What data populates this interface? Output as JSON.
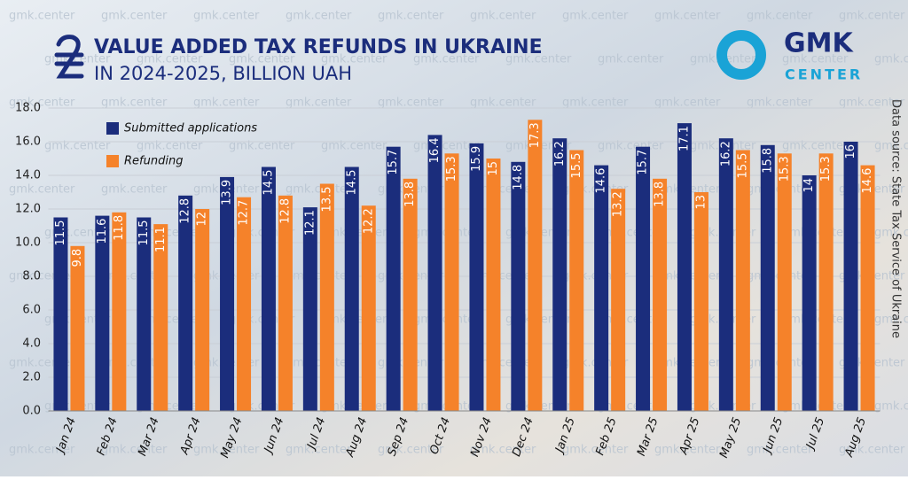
{
  "chart_data": {
    "type": "bar",
    "title": "VALUE ADDED TAX REFUNDS IN UKRAINE",
    "subtitle": "IN 2024-2025, BILLION UAH",
    "source": "Data source: State Tax Service of Ukraine",
    "categories": [
      "Jan 24",
      "Feb 24",
      "Mar 24",
      "Apr 24",
      "May 24",
      "Jun 24",
      "Jul 24",
      "Aug 24",
      "Sep 24",
      "Oct 24",
      "Nov 24",
      "Dec 24",
      "Jan 25",
      "Feb 25",
      "Mar 25",
      "Apr 25",
      "May 25",
      "Jun 25",
      "Jul 25",
      "Aug 25"
    ],
    "series": [
      {
        "name": "Submitted applications",
        "color": "#1b2d7c",
        "values": [
          11.5,
          11.6,
          11.5,
          12.8,
          13.9,
          14.5,
          12.1,
          14.5,
          15.7,
          16.4,
          15.9,
          14.8,
          16.2,
          14.6,
          15.7,
          17.1,
          16.2,
          15.8,
          14,
          16
        ]
      },
      {
        "name": "Refunding",
        "color": "#f5822a",
        "values": [
          9.8,
          11.8,
          11.1,
          12,
          12.7,
          12.8,
          13.5,
          12.2,
          13.8,
          15.3,
          15,
          17.3,
          15.5,
          13.2,
          13.8,
          13,
          15.5,
          15.3,
          15.3,
          14.6
        ]
      }
    ],
    "ylim": [
      0,
      18
    ],
    "yticks": [
      {
        "value": 0,
        "label": "0.0"
      },
      {
        "value": 2,
        "label": "2.0"
      },
      {
        "value": 4,
        "label": "4.0"
      },
      {
        "value": 6,
        "label": "6.0"
      },
      {
        "value": 8,
        "label": "8.0"
      },
      {
        "value": 10,
        "label": "10.0"
      },
      {
        "value": 12,
        "label": "12.0"
      },
      {
        "value": 14,
        "label": "14.0"
      },
      {
        "value": 16,
        "label": "16.0"
      },
      {
        "value": 18,
        "label": "18.0"
      }
    ],
    "grid": true,
    "legend": "top-left"
  },
  "logo": {
    "name": "GMK",
    "tagline": "CENTER"
  },
  "watermark": "gmk.center"
}
